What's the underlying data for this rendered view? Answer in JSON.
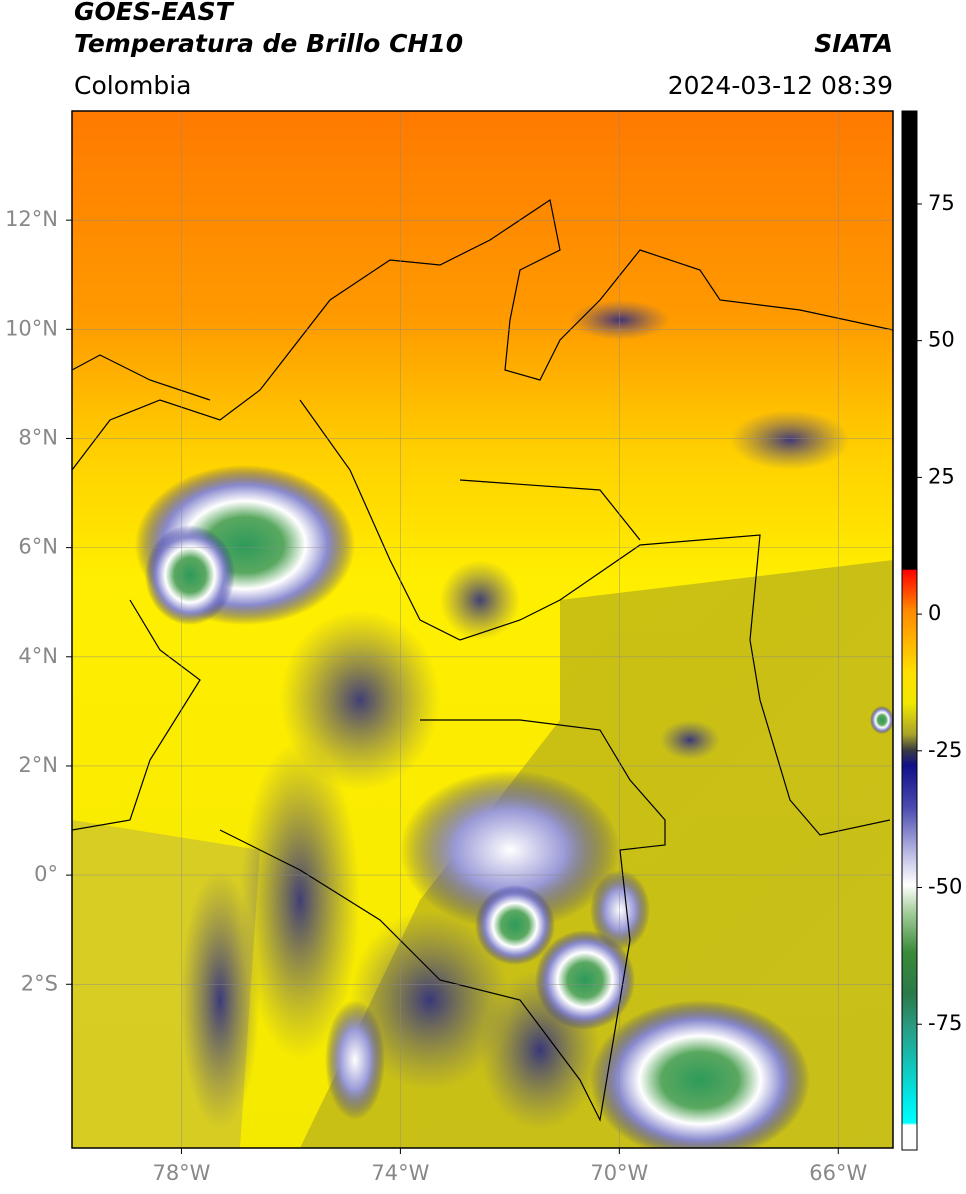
{
  "map": {
    "title": "GOES-EAST",
    "subtitle": "Temperatura de Brillo CH10",
    "source": "SIATA",
    "region": "Colombia",
    "datetime": "2024-03-12 08:39",
    "lonlim": [
      -80,
      -65
    ],
    "latlim": [
      -5,
      14
    ],
    "lonticks": [
      {
        "value": -78,
        "label": "78°W"
      },
      {
        "value": -74,
        "label": "74°W"
      },
      {
        "value": -70,
        "label": "70°W"
      },
      {
        "value": -66,
        "label": "66°W"
      }
    ],
    "latticks": [
      {
        "value": 12,
        "label": "12°N"
      },
      {
        "value": 10,
        "label": "10°N"
      },
      {
        "value": 8,
        "label": "8°N"
      },
      {
        "value": 6,
        "label": "6°N"
      },
      {
        "value": 4,
        "label": "4°N"
      },
      {
        "value": 2,
        "label": "2°N"
      },
      {
        "value": 0,
        "label": "0°"
      },
      {
        "value": -2,
        "label": "2°S"
      }
    ],
    "grid": true,
    "colorbar": {
      "lim": [
        -98,
        92
      ],
      "ticks": [
        75,
        50,
        25,
        0,
        -25,
        -50,
        -75
      ]
    }
  }
}
